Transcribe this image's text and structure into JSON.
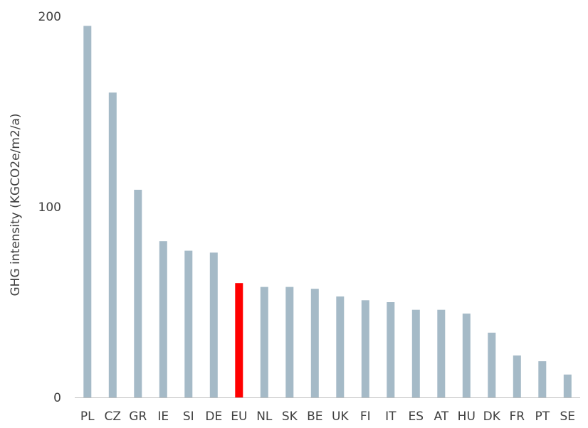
{
  "chart_data": {
    "type": "bar",
    "categories": [
      "PL",
      "CZ",
      "GR",
      "IE",
      "SI",
      "DE",
      "EU",
      "NL",
      "SK",
      "BE",
      "UK",
      "FI",
      "IT",
      "ES",
      "AT",
      "HU",
      "DK",
      "FR",
      "PT",
      "SE"
    ],
    "values": [
      195,
      160,
      109,
      82,
      77,
      76,
      60,
      58,
      58,
      57,
      53,
      51,
      50,
      46,
      46,
      44,
      34,
      22,
      19,
      12
    ],
    "title": "",
    "xlabel": "",
    "ylabel": "GHG intensity (KGCO2e/m2/a)",
    "ylim": [
      0,
      200
    ],
    "yticks": [
      "0",
      "100",
      "200"
    ],
    "grid": false,
    "colors": {
      "default": "#a5bac7",
      "highlight": "#ff0000",
      "axis": "#bfbfbf"
    },
    "highlight_category": "EU"
  }
}
